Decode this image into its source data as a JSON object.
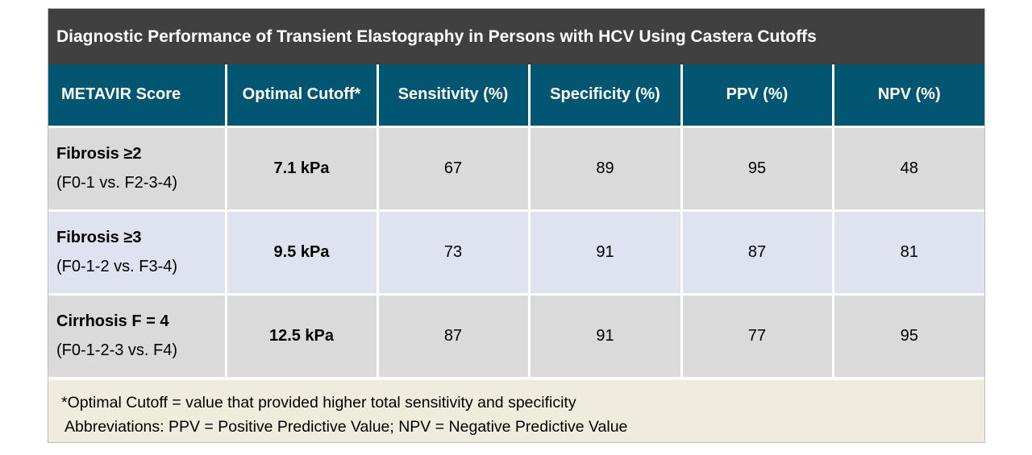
{
  "title": "Diagnostic Performance of Transient Elastography in Persons with HCV Using Castera Cutoffs",
  "colors": {
    "title_bar": "#404040",
    "header": "#035672",
    "row_grey": "#dadada",
    "row_blue": "#dfe2ef",
    "footnote_bg": "#efecdd"
  },
  "table": {
    "headers": [
      "METAVIR Score",
      "Optimal Cutoff*",
      "Sensitivity (%)",
      "Specificity (%)",
      "PPV (%)",
      "NPV (%)"
    ],
    "rows": [
      {
        "score": "Fibrosis ≥2",
        "comparison": "(F0-1 vs. F2-3-4)",
        "cutoff": "7.1 kPa",
        "sensitivity": "67",
        "specificity": "89",
        "ppv": "95",
        "npv": "48"
      },
      {
        "score": "Fibrosis ≥3",
        "comparison": "(F0-1-2 vs. F3-4)",
        "cutoff": "9.5 kPa",
        "sensitivity": "73",
        "specificity": "91",
        "ppv": "87",
        "npv": "81"
      },
      {
        "score": "Cirrhosis F = 4",
        "comparison": "(F0-1-2-3 vs. F4)",
        "cutoff": "12.5 kPa",
        "sensitivity": "87",
        "specificity": "91",
        "ppv": "77",
        "npv": "95"
      }
    ]
  },
  "footnote": {
    "line1": "*Optimal Cutoff = value that provided higher total sensitivity and specificity",
    "line2": "Abbreviations: PPV = Positive Predictive Value; NPV = Negative Predictive Value"
  }
}
